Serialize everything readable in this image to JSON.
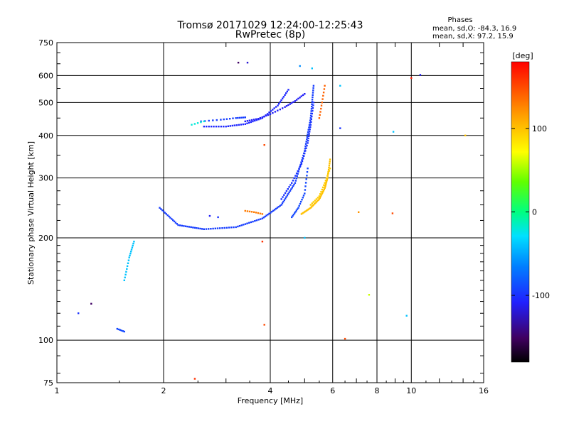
{
  "chart_data": {
    "type": "scatter",
    "title": "Tromsø 20171029 12:24:00-12:25:43",
    "subtitle": "RwPretec (8p)",
    "xlabel": "Frequency [MHz]",
    "ylabel": "Stationary phase Virtual Height [km]",
    "x_scale": "log",
    "y_scale": "log",
    "xlim": [
      1,
      16
    ],
    "ylim": [
      75,
      750
    ],
    "x_ticks": [
      "1",
      "2",
      "4",
      "6",
      "8",
      "10",
      "16"
    ],
    "y_ticks": [
      "75",
      "100",
      "200",
      "300",
      "400",
      "500",
      "600",
      "750"
    ],
    "grid": true,
    "phases_info": {
      "heading": "Phases",
      "line_o": "mean, sd,O:  -84.3,  16.9",
      "line_x": "mean, sd,X:   97.2,  15.9"
    },
    "colorbar": {
      "label": "[deg]",
      "range": [
        -180,
        180
      ],
      "ticks": [
        "100",
        "0",
        "-100"
      ]
    },
    "clusters": [
      {
        "f": [
          2.6,
          3.0,
          3.4,
          3.8,
          4.2,
          4.5
        ],
        "h": [
          425,
          425,
          432,
          450,
          490,
          545
        ],
        "phase": -105,
        "n": 9
      },
      {
        "f": [
          2.55,
          2.9,
          3.2,
          3.4
        ],
        "h": [
          440,
          445,
          450,
          452
        ],
        "phase": -95,
        "n": 5
      },
      {
        "f": [
          2.4,
          2.6
        ],
        "h": [
          430,
          440
        ],
        "phase": -20,
        "n": 4
      },
      {
        "f": [
          3.4,
          3.7,
          4.0,
          4.4,
          4.7,
          5.0
        ],
        "h": [
          440,
          448,
          462,
          485,
          505,
          530
        ],
        "phase": -110,
        "n": 6
      },
      {
        "f": [
          1.95,
          2.2,
          2.6,
          3.2,
          3.8,
          4.3,
          4.7,
          5.0,
          5.2,
          5.3
        ],
        "h": [
          245,
          218,
          212,
          215,
          228,
          250,
          290,
          360,
          450,
          560
        ],
        "phase": -95,
        "n": 14
      },
      {
        "f": [
          4.3,
          4.6,
          4.9,
          5.1,
          5.2,
          5.3
        ],
        "h": [
          260,
          290,
          330,
          380,
          430,
          500
        ],
        "phase": -100,
        "n": 8
      },
      {
        "f": [
          4.6,
          4.8,
          5.0,
          5.1
        ],
        "h": [
          230,
          245,
          270,
          320
        ],
        "phase": -90,
        "n": 7
      },
      {
        "f": [
          4.9,
          5.2,
          5.5,
          5.7,
          5.8,
          5.9
        ],
        "h": [
          235,
          245,
          260,
          280,
          300,
          340
        ],
        "phase": 100,
        "n": 9
      },
      {
        "f": [
          5.2,
          5.5,
          5.7,
          5.9
        ],
        "h": [
          250,
          265,
          290,
          320
        ],
        "phase": 95,
        "n": 6
      },
      {
        "f": [
          5.5,
          5.6,
          5.7
        ],
        "h": [
          450,
          500,
          560
        ],
        "phase": 140,
        "n": 5
      },
      {
        "f": [
          3.4,
          3.6,
          3.8
        ],
        "h": [
          240,
          238,
          235
        ],
        "phase": 130,
        "n": 4
      },
      {
        "f": [
          1.55,
          1.6,
          1.65
        ],
        "h": [
          150,
          175,
          195
        ],
        "phase": -40,
        "n": 8
      },
      {
        "f": [
          1.48,
          1.55
        ],
        "h": [
          108,
          106
        ],
        "phase": -90,
        "n": 5
      }
    ],
    "singles": [
      {
        "f": 1.15,
        "h": 120,
        "phase": -100
      },
      {
        "f": 1.25,
        "h": 128,
        "phase": -150
      },
      {
        "f": 3.25,
        "h": 655,
        "phase": -150
      },
      {
        "f": 3.45,
        "h": 655,
        "phase": -120
      },
      {
        "f": 4.85,
        "h": 640,
        "phase": -60
      },
      {
        "f": 5.25,
        "h": 630,
        "phase": -40
      },
      {
        "f": 3.85,
        "h": 375,
        "phase": 150
      },
      {
        "f": 3.8,
        "h": 195,
        "phase": 160
      },
      {
        "f": 3.85,
        "h": 111,
        "phase": 150
      },
      {
        "f": 2.45,
        "h": 77,
        "phase": 160
      },
      {
        "f": 6.3,
        "h": 560,
        "phase": -40
      },
      {
        "f": 6.3,
        "h": 420,
        "phase": -100
      },
      {
        "f": 6.5,
        "h": 101,
        "phase": 150
      },
      {
        "f": 7.6,
        "h": 136,
        "phase": 60
      },
      {
        "f": 7.1,
        "h": 238,
        "phase": 120
      },
      {
        "f": 8.85,
        "h": 236,
        "phase": 150
      },
      {
        "f": 8.9,
        "h": 410,
        "phase": -40
      },
      {
        "f": 9.7,
        "h": 118,
        "phase": -40
      },
      {
        "f": 10.0,
        "h": 590,
        "phase": 170
      },
      {
        "f": 10.6,
        "h": 603,
        "phase": -110
      },
      {
        "f": 14.2,
        "h": 400,
        "phase": 100
      },
      {
        "f": 2.85,
        "h": 230,
        "phase": -100
      },
      {
        "f": 2.7,
        "h": 232,
        "phase": -110
      },
      {
        "f": 5.0,
        "h": 200,
        "phase": -40
      }
    ]
  }
}
